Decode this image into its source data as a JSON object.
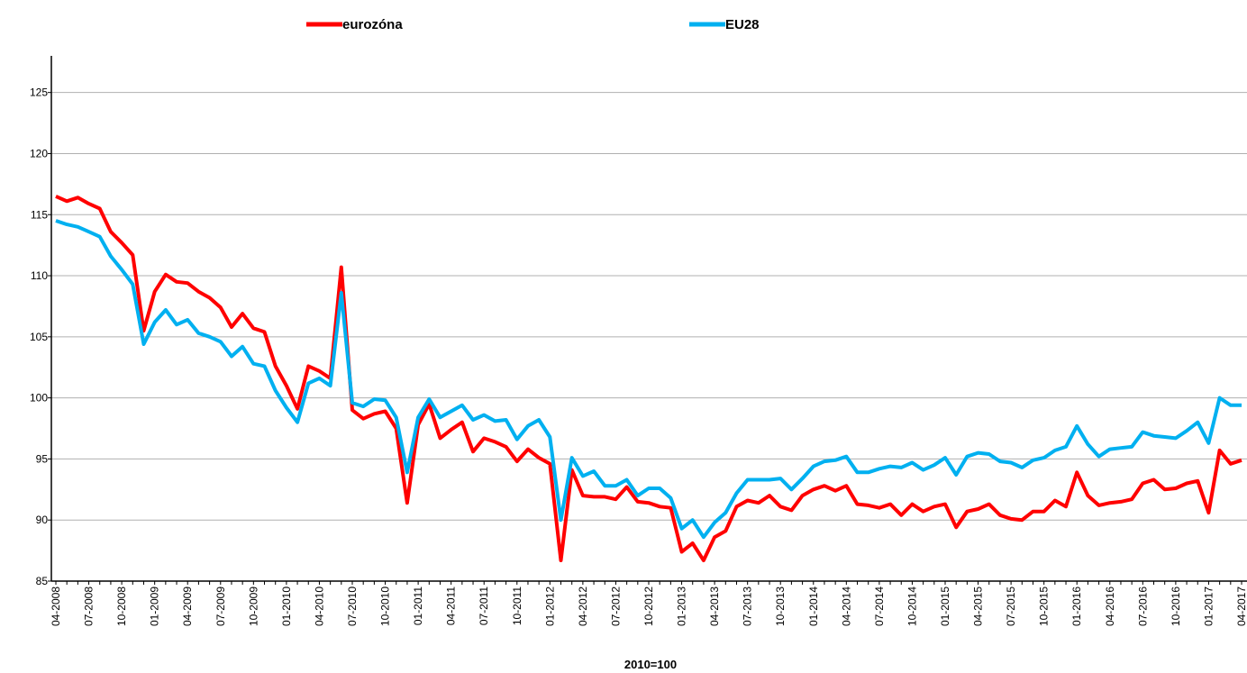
{
  "chart_data": {
    "type": "line",
    "x_label": "2010=100",
    "categories": [
      "04-2008",
      null,
      null,
      "07-2008",
      null,
      null,
      "10-2008",
      null,
      null,
      "01-2009",
      null,
      null,
      "04-2009",
      null,
      null,
      "07-2009",
      null,
      null,
      "10-2009",
      null,
      null,
      "01-2010",
      null,
      null,
      "04-2010",
      null,
      null,
      "07-2010",
      null,
      null,
      "10-2010",
      null,
      null,
      "01-2011",
      null,
      null,
      "04-2011",
      null,
      null,
      "07-2011",
      null,
      null,
      "10-2011",
      null,
      null,
      "01-2012",
      null,
      null,
      "04-2012",
      null,
      null,
      "07-2012",
      null,
      null,
      "10-2012",
      null,
      null,
      "01-2013",
      null,
      null,
      "04-2013",
      null,
      null,
      "07-2013",
      null,
      null,
      "10-2013",
      null,
      null,
      "01-2014",
      null,
      null,
      "04-2014",
      null,
      null,
      "07-2014",
      null,
      null,
      "10-2014",
      null,
      null,
      "01-2015",
      null,
      null,
      "04-2015",
      null,
      null,
      "07-2015",
      null,
      null,
      "10-2015",
      null,
      null,
      "01-2016",
      null,
      null,
      "04-2016",
      null,
      null,
      "07-2016",
      null,
      null,
      "10-2016",
      null,
      null,
      "01-2017",
      null,
      null,
      "04-2017"
    ],
    "series": [
      {
        "name": "eurozóna",
        "color": "#ff0000",
        "values": [
          116.5,
          116.1,
          116.4,
          115.9,
          115.5,
          113.6,
          112.7,
          111.7,
          105.5,
          108.7,
          110.1,
          109.5,
          109.4,
          108.7,
          108.2,
          107.4,
          105.8,
          106.9,
          105.7,
          105.4,
          102.6,
          101.0,
          99.1,
          102.6,
          102.2,
          101.6,
          110.7,
          99.0,
          98.3,
          98.7,
          98.9,
          97.5,
          91.4,
          97.8,
          99.5,
          96.7,
          97.4,
          98.0,
          95.6,
          96.7,
          96.4,
          96.0,
          94.8,
          95.8,
          95.1,
          94.6,
          86.7,
          94.1,
          92.0,
          91.9,
          91.9,
          91.7,
          92.7,
          91.5,
          91.4,
          91.1,
          91.0,
          87.4,
          88.1,
          86.7,
          88.6,
          89.1,
          91.1,
          91.6,
          91.4,
          92.0,
          91.1,
          90.8,
          92.0,
          92.5,
          92.8,
          92.4,
          92.8,
          91.3,
          91.2,
          91.0,
          91.3,
          90.4,
          91.3,
          90.7,
          91.1,
          91.3,
          89.4,
          90.7,
          90.9,
          91.3,
          90.4,
          90.1,
          90.0,
          90.7,
          90.7,
          91.6,
          91.1,
          93.9,
          92.0,
          91.2,
          91.4,
          91.5,
          91.7,
          93.0,
          93.3,
          92.5,
          92.6,
          93.0,
          93.2,
          90.6,
          95.7,
          94.6,
          94.9
        ]
      },
      {
        "name": "EU28",
        "color": "#00b0f0",
        "values": [
          114.5,
          114.2,
          114.0,
          113.6,
          113.2,
          111.6,
          110.5,
          109.3,
          104.4,
          106.2,
          107.2,
          106.0,
          106.4,
          105.3,
          105.0,
          104.6,
          103.4,
          104.2,
          102.8,
          102.6,
          100.6,
          99.2,
          98.0,
          101.2,
          101.6,
          101.0,
          108.6,
          99.6,
          99.3,
          99.9,
          99.8,
          98.4,
          93.9,
          98.4,
          99.9,
          98.4,
          98.9,
          99.4,
          98.2,
          98.6,
          98.1,
          98.2,
          96.6,
          97.7,
          98.2,
          96.8,
          90.0,
          95.1,
          93.6,
          94.0,
          92.8,
          92.8,
          93.3,
          92.0,
          92.6,
          92.6,
          91.8,
          89.3,
          90.0,
          88.6,
          89.8,
          90.6,
          92.2,
          93.3,
          93.3,
          93.3,
          93.4,
          92.5,
          93.4,
          94.4,
          94.8,
          94.9,
          95.2,
          93.9,
          93.9,
          94.2,
          94.4,
          94.3,
          94.7,
          94.1,
          94.5,
          95.1,
          93.7,
          95.2,
          95.5,
          95.4,
          94.8,
          94.7,
          94.3,
          94.9,
          95.1,
          95.7,
          96.0,
          97.7,
          96.2,
          95.2,
          95.8,
          95.9,
          96.0,
          97.2,
          96.9,
          96.8,
          96.7,
          97.3,
          98.0,
          96.3,
          100.0,
          99.4,
          99.4
        ]
      }
    ],
    "ylim": [
      85,
      128
    ],
    "yticks": [
      85,
      90,
      95,
      100,
      105,
      110,
      115,
      120,
      125
    ],
    "grid": true,
    "legend": "top"
  }
}
